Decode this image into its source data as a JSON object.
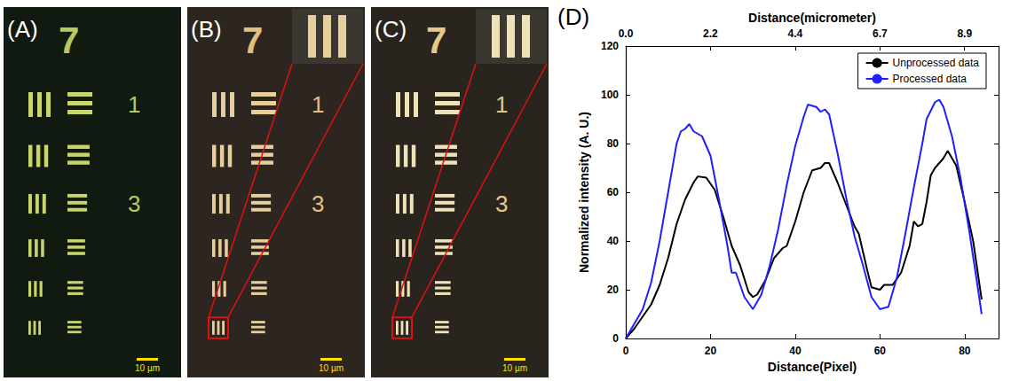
{
  "panels": [
    {
      "letter": "(A)",
      "group_label": "7",
      "element_labels": [
        "1",
        null,
        "3",
        null,
        null,
        null
      ],
      "scale_bar": "10 µm",
      "zoom_inset": false
    },
    {
      "letter": "(B)",
      "group_label": "7",
      "element_labels": [
        "1",
        null,
        "3",
        null,
        null,
        null
      ],
      "scale_bar": "10 µm",
      "zoom_inset": true
    },
    {
      "letter": "(C)",
      "group_label": "7",
      "element_labels": [
        "1",
        null,
        "3",
        null,
        null,
        null
      ],
      "scale_bar": "10 µm",
      "zoom_inset": true
    }
  ],
  "chart_data": {
    "type": "line",
    "panel_label": "(D)",
    "x_label": "Distance(Pixel)",
    "x2_label": "Distance(micrometer)",
    "y_label": "Normalized intensity (A. U.)",
    "xlim": [
      0,
      88
    ],
    "xticks": [
      0,
      20,
      40,
      60,
      80
    ],
    "x2lim": [
      0,
      9.78
    ],
    "x2ticks": [
      {
        "value": 0,
        "label": "0.0"
      },
      {
        "value": 2.222,
        "label": "2.2"
      },
      {
        "value": 4.444,
        "label": "4.4"
      },
      {
        "value": 6.667,
        "label": "6.7"
      },
      {
        "value": 8.889,
        "label": "8.9"
      }
    ],
    "ylim": [
      0,
      120
    ],
    "yticks": [
      0,
      20,
      40,
      60,
      80,
      100,
      120
    ],
    "grid": false,
    "legend": "upper right",
    "series": [
      {
        "name": "Unprocessed data",
        "color": "#000000",
        "x": [
          0,
          2,
          4,
          6,
          8,
          10,
          12,
          14,
          16,
          17,
          19,
          21,
          23,
          25,
          27,
          29,
          30,
          31,
          33,
          35,
          37,
          38,
          40,
          42,
          44,
          46,
          47,
          48,
          50,
          52,
          54,
          55,
          57,
          58,
          60,
          61,
          63,
          65,
          67,
          68,
          69,
          70,
          71,
          72,
          73,
          75,
          76,
          78,
          80,
          82,
          84
        ],
        "values": [
          0,
          4,
          9,
          14,
          22,
          33,
          47,
          57,
          64,
          66.5,
          66,
          61,
          50,
          38,
          30,
          19,
          17,
          18,
          24,
          33,
          37,
          38,
          48,
          60,
          69,
          70,
          72,
          72,
          64,
          55,
          46,
          43,
          28,
          21,
          20,
          22,
          22,
          27,
          38,
          48,
          46,
          47,
          56,
          67,
          70,
          74,
          77,
          71,
          56,
          40,
          16
        ]
      },
      {
        "name": "Processed data",
        "color": "#1f1fff",
        "x": [
          0,
          2,
          4,
          6,
          8,
          10,
          12,
          13,
          14,
          15,
          16,
          18,
          20,
          22,
          24,
          25,
          26,
          27,
          28,
          30,
          32,
          34,
          36,
          38,
          40,
          42,
          43,
          45,
          46,
          47,
          48,
          50,
          52,
          54,
          56,
          58,
          60,
          62,
          64,
          66,
          68,
          70,
          71,
          73,
          74,
          75,
          77,
          79,
          81,
          83,
          84
        ],
        "values": [
          0,
          6,
          12,
          23,
          40,
          60,
          80,
          85,
          86,
          88,
          85,
          83,
          75,
          57,
          38,
          27,
          27,
          22,
          17,
          12,
          18,
          30,
          45,
          63,
          79,
          91,
          96,
          95,
          93,
          94,
          92,
          76,
          58,
          42,
          30,
          17,
          12,
          13,
          25,
          43,
          62,
          80,
          90,
          97,
          98,
          95,
          83,
          66,
          45,
          22,
          10
        ]
      }
    ]
  }
}
